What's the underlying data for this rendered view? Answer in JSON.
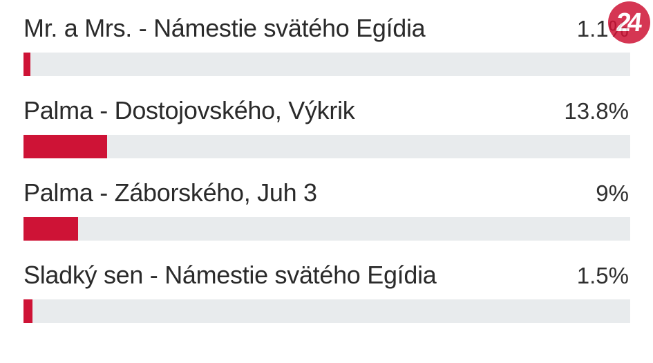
{
  "poll": {
    "unit": "%",
    "scale_max": 100,
    "items": [
      {
        "label": "Mr. a Mrs. - Námestie svätého Egídia",
        "value": 1.1,
        "display": "1.1%"
      },
      {
        "label": "Palma - Dostojovského, Výkrik",
        "value": 13.8,
        "display": "13.8%"
      },
      {
        "label": "Palma - Záborského, Juh 3",
        "value": 9,
        "display": "9%"
      },
      {
        "label": "Sladký sen - Námestie svätého Egídia",
        "value": 1.5,
        "display": "1.5%"
      }
    ]
  },
  "logo": {
    "text": "24"
  },
  "colors": {
    "bar_fill": "#ce1336",
    "bar_track": "#e8ebed",
    "text": "#2a2a2a",
    "background": "#ffffff",
    "logo_circle": "#ce1336"
  },
  "chart_data": {
    "type": "bar",
    "orientation": "horizontal",
    "categories": [
      "Mr. a Mrs. - Námestie svätého Egídia",
      "Palma - Dostojovského, Výkrik",
      "Palma - Záborského, Juh 3",
      "Sladký sen - Námestie svätého Egídia"
    ],
    "values": [
      1.1,
      13.8,
      9,
      1.5
    ],
    "value_labels": [
      "1.1%",
      "13.8%",
      "9%",
      "1.5%"
    ],
    "title": "",
    "xlabel": "",
    "ylabel": "",
    "xlim": [
      0,
      100
    ],
    "unit": "%",
    "grid": false,
    "legend": false
  }
}
